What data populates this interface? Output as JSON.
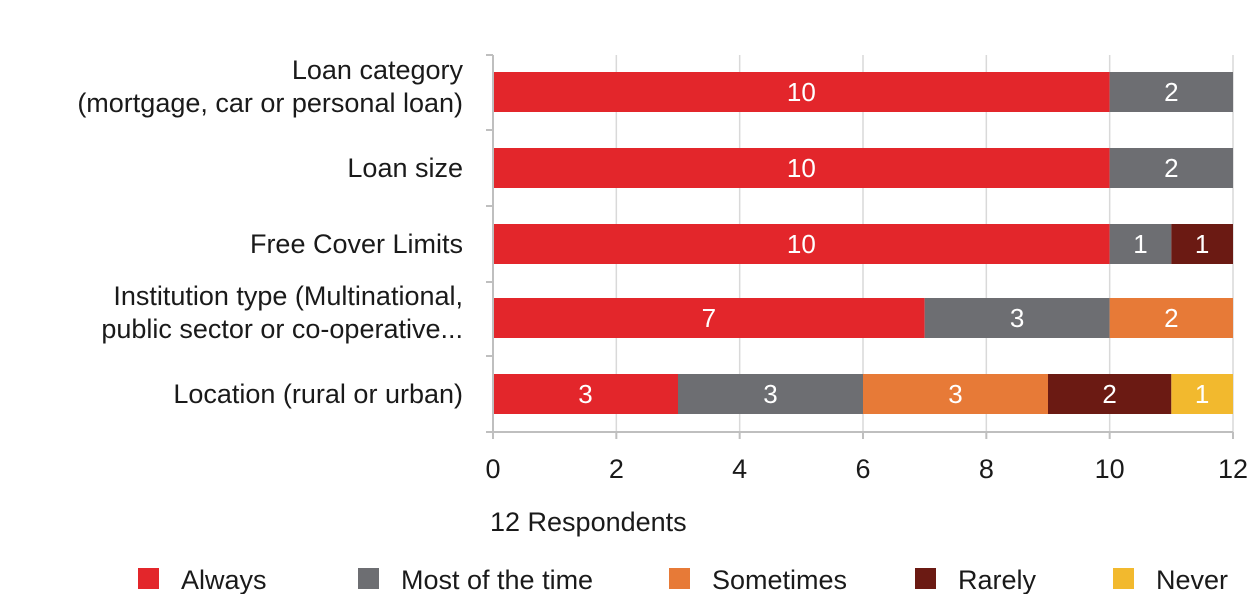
{
  "chart_data": {
    "type": "bar",
    "orientation": "horizontal",
    "stacked": true,
    "categories": [
      [
        "Loan category",
        "(mortgage, car or personal loan)"
      ],
      [
        "Loan size"
      ],
      [
        "Free Cover Limits"
      ],
      [
        "Institution type (Multinational,",
        "public sector or co-operative..."
      ],
      [
        "Location (rural or urban)"
      ]
    ],
    "series": [
      {
        "name": "Always",
        "color": "#e3262b",
        "values": [
          10,
          10,
          10,
          7,
          3
        ]
      },
      {
        "name": "Most of the time",
        "color": "#6d6e72",
        "values": [
          2,
          2,
          1,
          3,
          3
        ]
      },
      {
        "name": "Sometimes",
        "color": "#e77a37",
        "values": [
          0,
          0,
          0,
          2,
          3
        ]
      },
      {
        "name": "Rarely",
        "color": "#6b1a13",
        "values": [
          0,
          0,
          1,
          0,
          2
        ]
      },
      {
        "name": "Never",
        "color": "#f2b92e",
        "values": [
          0,
          0,
          0,
          0,
          1
        ]
      }
    ],
    "xlim": [
      0,
      12
    ],
    "xticks": [
      0,
      2,
      4,
      6,
      8,
      10,
      12
    ],
    "xlabel": "12 Respondents",
    "grid": "vertical",
    "legend": "bottom"
  }
}
